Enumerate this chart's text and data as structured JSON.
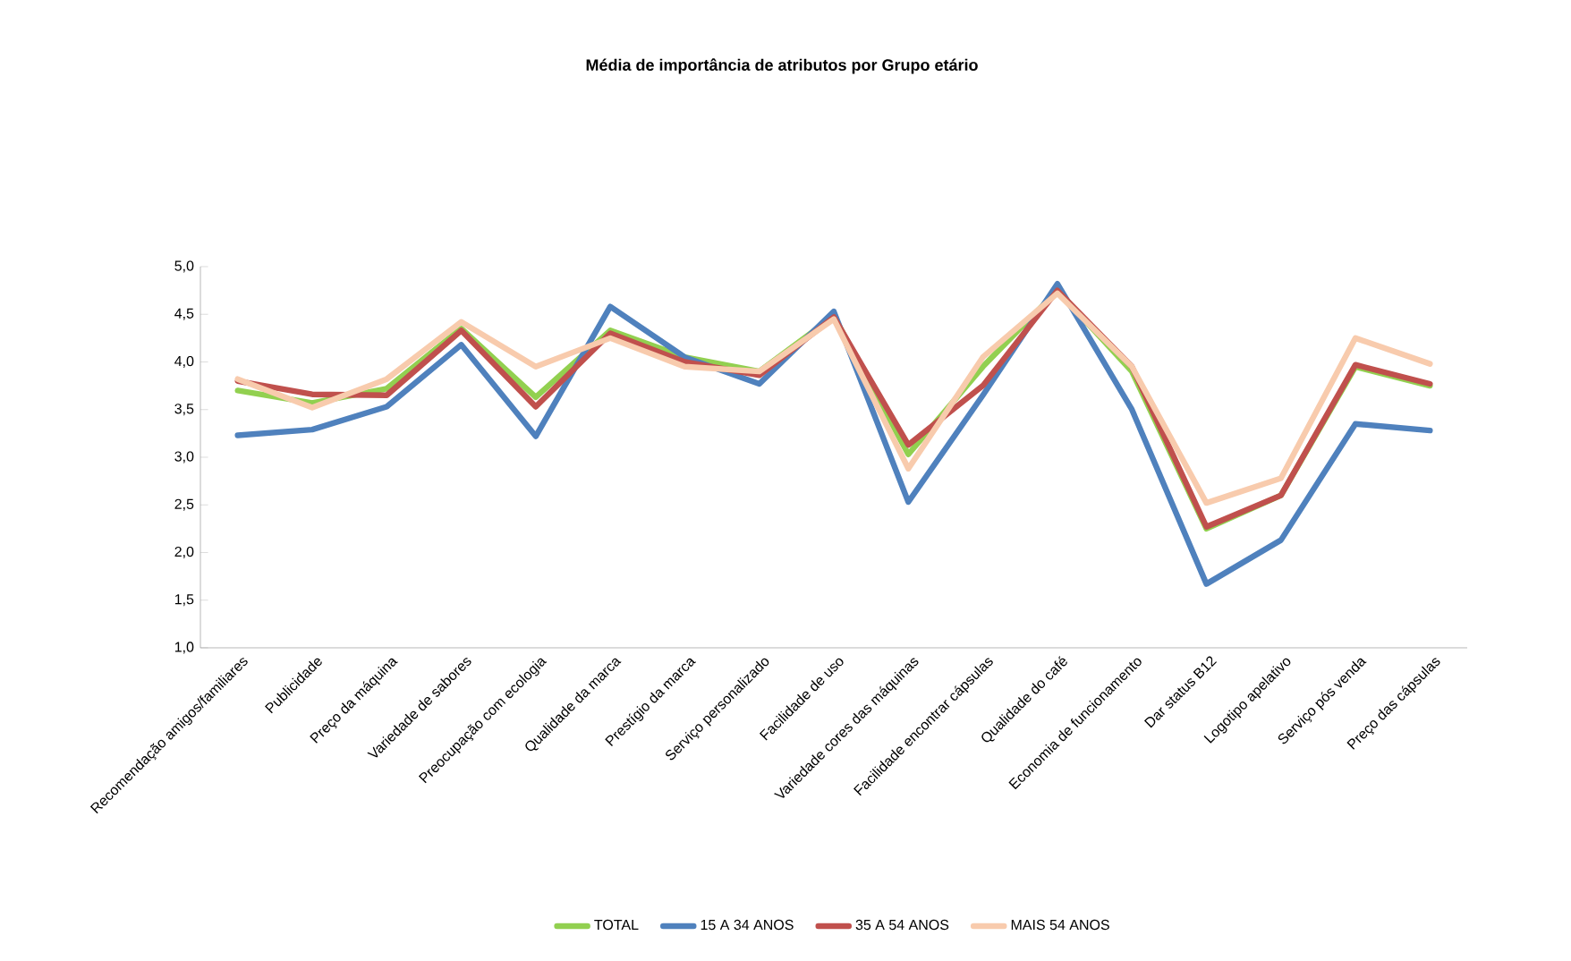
{
  "chart_data": {
    "type": "line",
    "title": "Média de importância de atributos por Grupo etário",
    "categories": [
      "Recomendação amigos/familiares",
      "Publicidade",
      "Preço da máquina",
      "Variedade de sabores",
      "Preocupação com ecologia",
      "Qualidade da marca",
      "Prestígio da marca",
      "Serviço personalizado",
      "Facilidade de uso",
      "Variedade cores das máquinas",
      "Facilidade encontrar cápsulas",
      "Qualidade do café",
      "Economia de funcionamento",
      "Dar status B12",
      "Logotipo apelativo",
      "Serviço pós venda",
      "Preço das cápsulas"
    ],
    "series": [
      {
        "name": "TOTAL",
        "color": "#92d050",
        "values": [
          3.7,
          3.57,
          3.72,
          4.35,
          3.63,
          4.33,
          4.05,
          3.9,
          4.48,
          3.03,
          3.95,
          4.75,
          3.9,
          2.25,
          2.6,
          3.95,
          3.75
        ]
      },
      {
        "name": "15 A 34 ANOS",
        "color": "#4f81bd",
        "values": [
          3.23,
          3.29,
          3.53,
          4.18,
          3.22,
          4.58,
          4.05,
          3.77,
          4.53,
          2.53,
          3.65,
          4.82,
          3.5,
          1.67,
          2.13,
          3.35,
          3.28
        ]
      },
      {
        "name": "35 A 54 ANOS",
        "color": "#c0504d",
        "values": [
          3.8,
          3.66,
          3.65,
          4.33,
          3.53,
          4.3,
          4.0,
          3.86,
          4.47,
          3.13,
          3.75,
          4.75,
          3.95,
          2.27,
          2.6,
          3.97,
          3.77
        ]
      },
      {
        "name": "MAIS 54 ANOS",
        "color": "#f8cbad",
        "values": [
          3.82,
          3.52,
          3.82,
          4.42,
          3.95,
          4.25,
          3.95,
          3.9,
          4.45,
          2.88,
          4.05,
          4.72,
          3.95,
          2.52,
          2.78,
          4.25,
          3.98
        ]
      }
    ],
    "ylim": [
      1,
      5
    ],
    "yticks": [
      {
        "value": 1,
        "label": "1,0"
      },
      {
        "value": 1.5,
        "label": "1,5"
      },
      {
        "value": 2,
        "label": "2,0"
      },
      {
        "value": 2.5,
        "label": "2,5"
      },
      {
        "value": 3,
        "label": "3,0"
      },
      {
        "value": 3.5,
        "label": "3,5"
      },
      {
        "value": 4,
        "label": "4,0"
      },
      {
        "value": 4.5,
        "label": "4,5"
      },
      {
        "value": 5,
        "label": "5,0"
      }
    ],
    "grid": false,
    "legend": "bottom",
    "marker": "none",
    "line_style": "solid"
  }
}
